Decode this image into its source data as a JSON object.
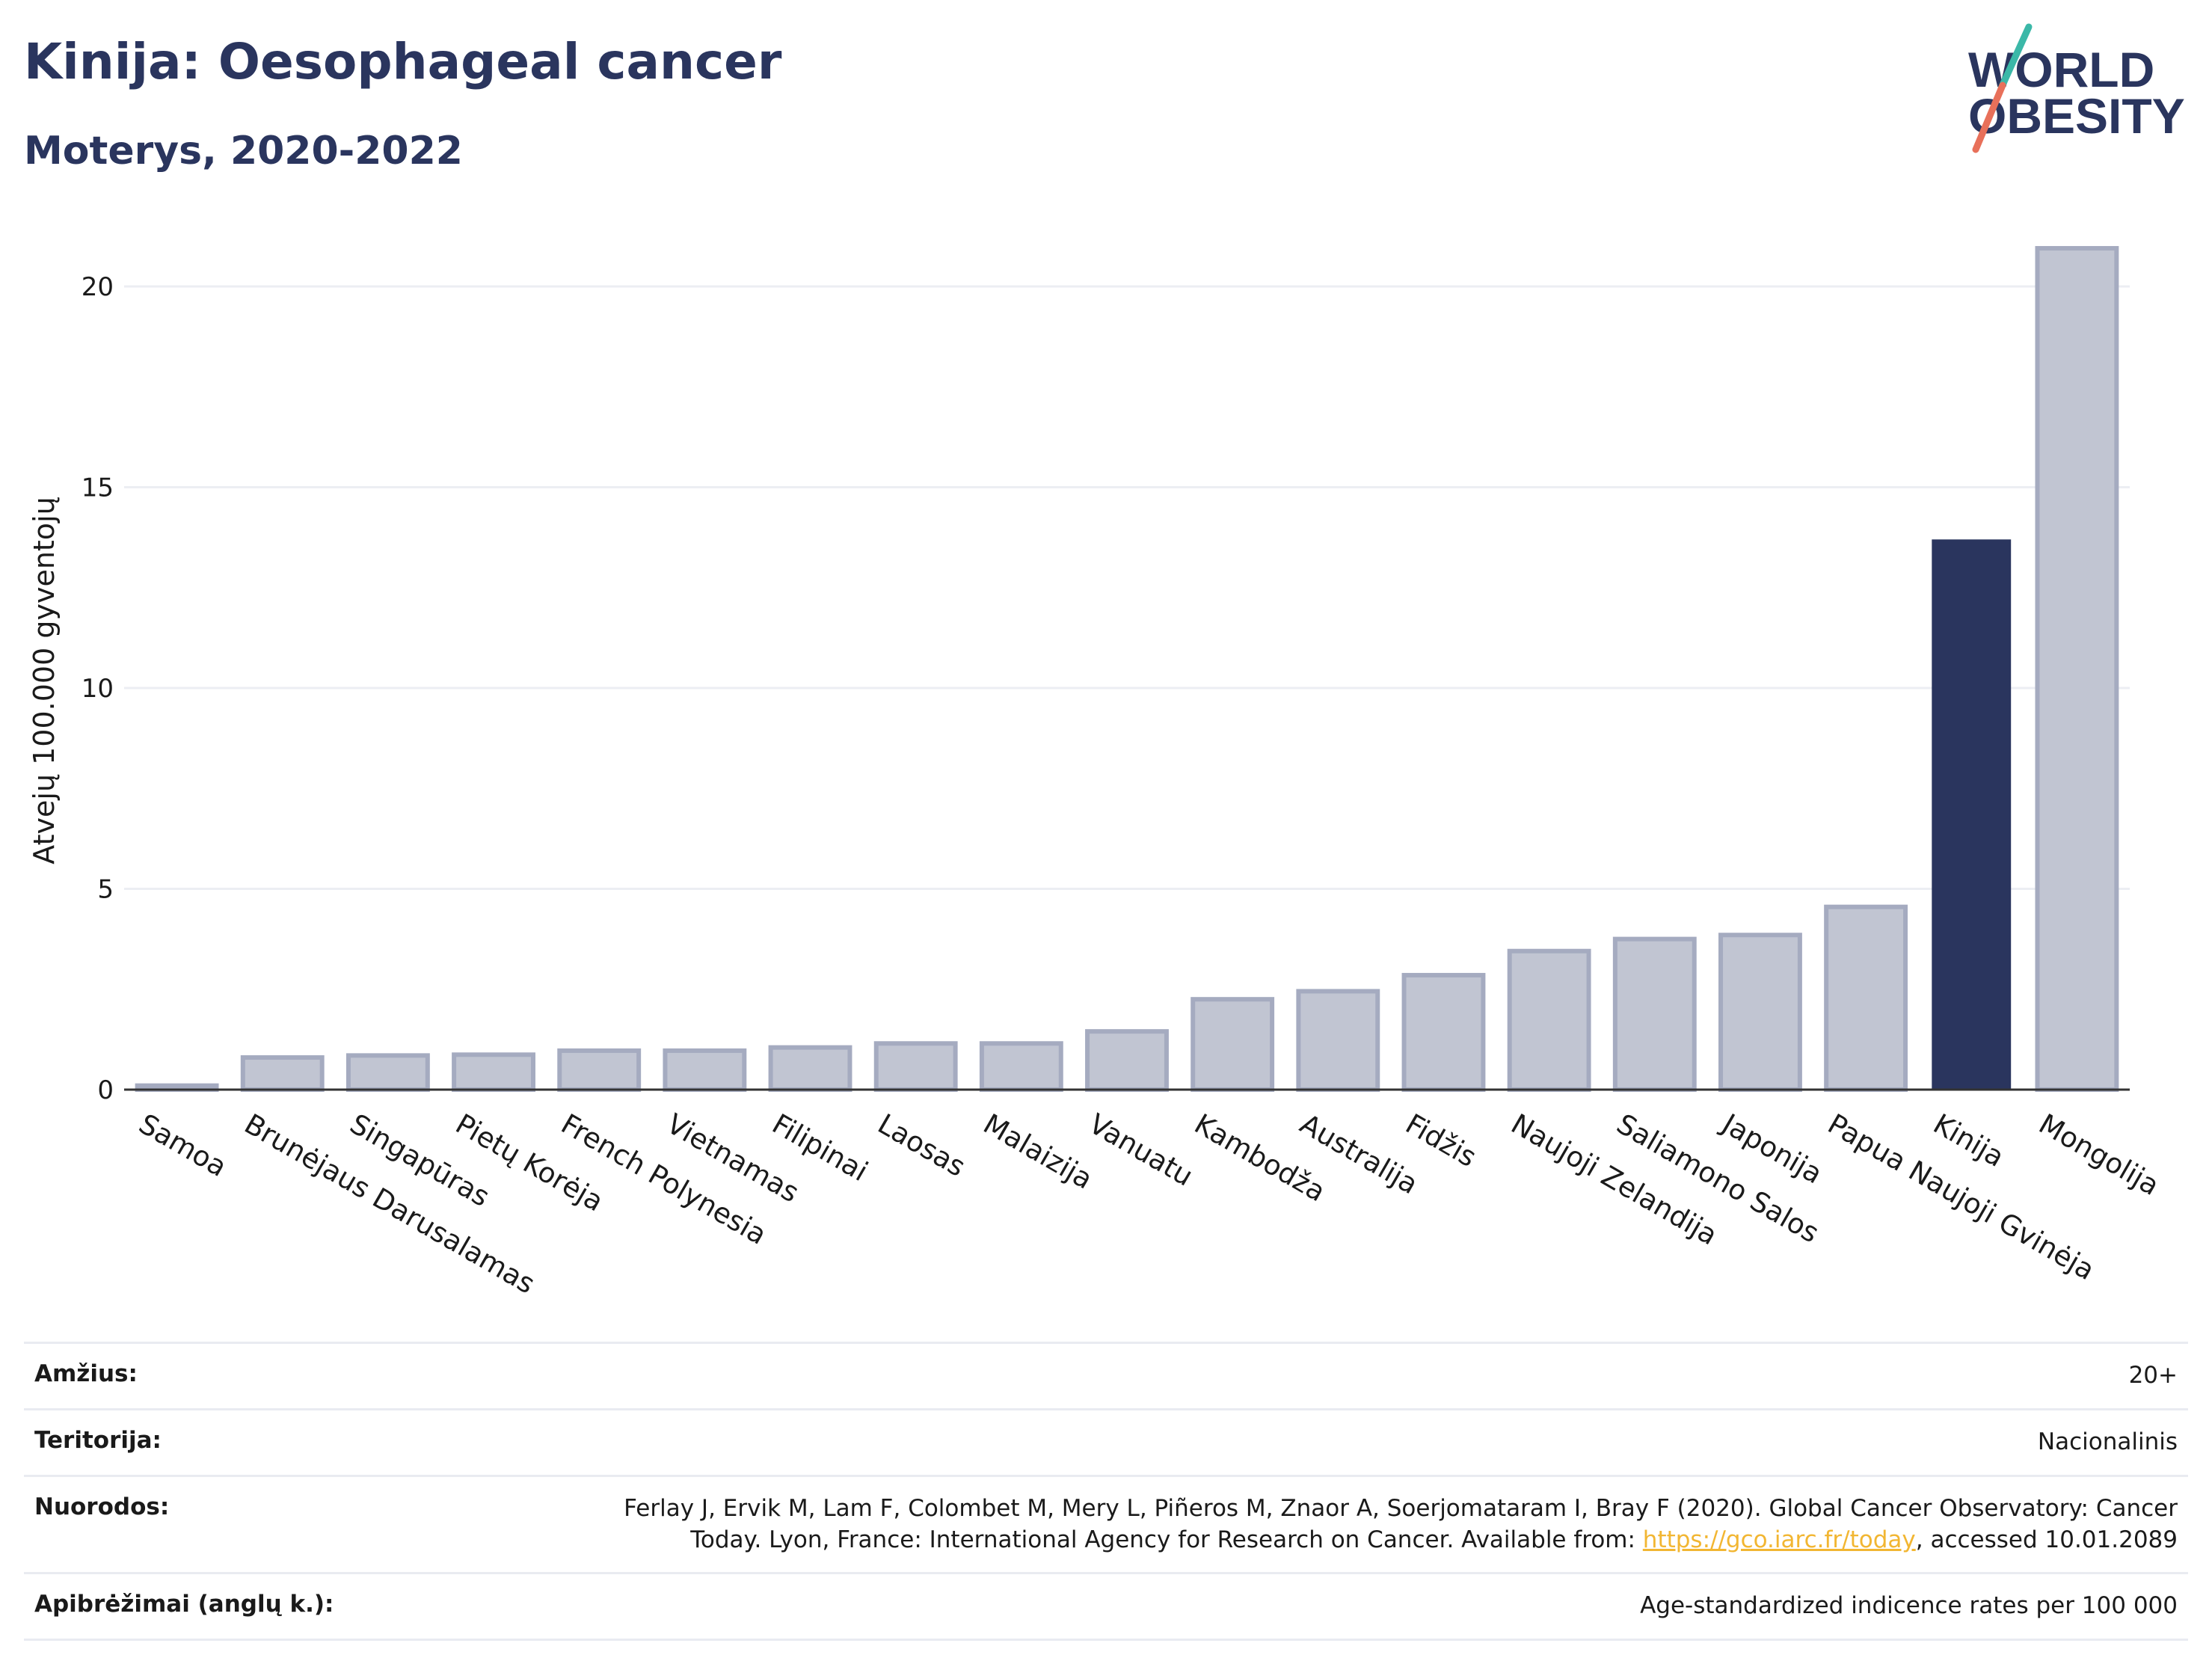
{
  "title": "Kinija: Oesophageal cancer",
  "subtitle": "Moterys, 2020-2022",
  "logo": {
    "line1": "WORLD",
    "line2": "OBESITY",
    "icon": "world-obesity-logo",
    "colors": [
      "#2a355e",
      "#3bb8a8",
      "#e8705a"
    ]
  },
  "chart_data": {
    "type": "bar",
    "ylabel": "Atvejų 100.000 gyventojų",
    "ylim": [
      0,
      21.5
    ],
    "yticks": [
      0,
      5,
      10,
      15,
      20
    ],
    "grid": true,
    "categories": [
      "Samoa",
      "Brunėjaus Darusalamas",
      "Singapūras",
      "Pietų Korėja",
      "French Polynesia",
      "Vietnamas",
      "Filipinai",
      "Laosas",
      "Malaizija",
      "Vanuatu",
      "Kambodža",
      "Australija",
      "Fidžis",
      "Naujoji Zelandija",
      "Saliamono Salos",
      "Japonija",
      "Papua Naujoji Gvinėja",
      "Kinija",
      "Mongolija"
    ],
    "values": [
      0.1,
      0.8,
      0.85,
      0.87,
      0.97,
      0.97,
      1.05,
      1.15,
      1.15,
      1.45,
      2.25,
      2.45,
      2.85,
      3.45,
      3.75,
      3.85,
      4.55,
      13.7,
      20.95
    ],
    "highlight": "Kinija",
    "colors": {
      "highlight": "#2a355e",
      "other_fill": "#c1c5d2",
      "other_stroke": "#a5abc0",
      "grid": "#eceef3",
      "axis": "#333333"
    }
  },
  "footer": {
    "age_label": "Amžius:",
    "age_value": "20+",
    "territory_label": "Teritorija:",
    "territory_value": "Nacionalinis",
    "refs_label": "Nuorodos:",
    "refs_text_1": "Ferlay J, Ervik M, Lam F, Colombet M, Mery L, Piñeros M, Znaor A, Soerjomataram I, Bray F (2020). Global Cancer Observatory: Cancer Today. Lyon, France: International Agency for Research on Cancer. Available from: ",
    "refs_link": "https://gco.iarc.fr/today",
    "refs_text_2": ", accessed 10.01.2089",
    "definitions_label": "Apibrėžimai (anglų k.):",
    "definitions_value": "Age-standardized indicence rates per 100 000"
  }
}
